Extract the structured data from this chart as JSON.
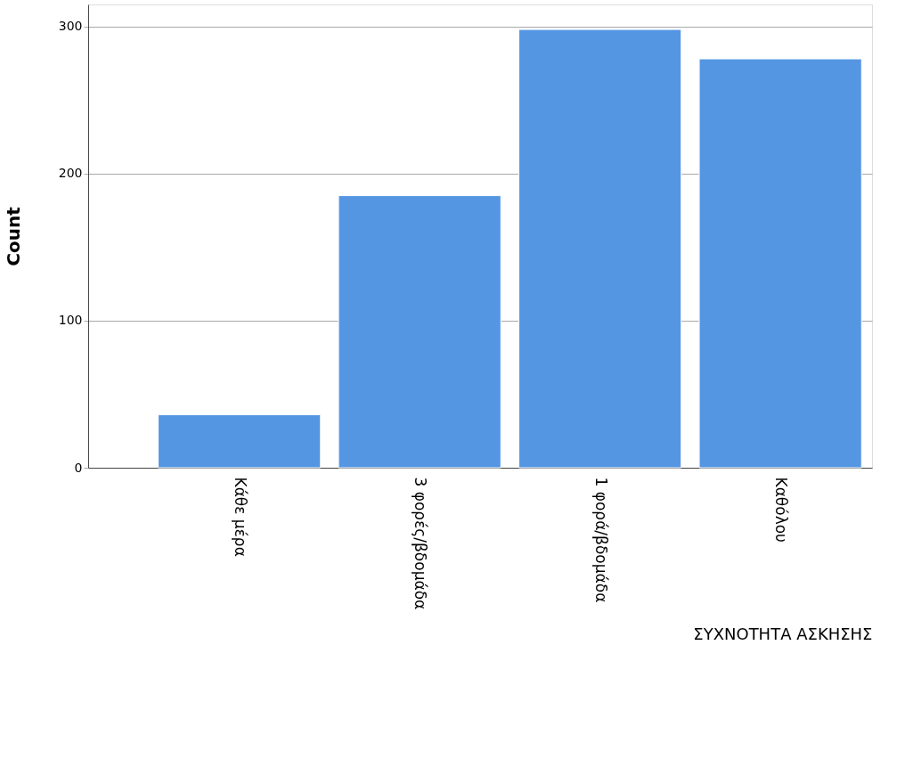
{
  "chart_data": {
    "type": "bar",
    "xlabel": "ΣΥΧΝΟΤΗΤΑ ΑΣΚΗΣΗΣ",
    "ylabel": "Count",
    "categories": [
      "Κάθε μέρα",
      "3 φορές/βδομάδα",
      "1 φορά/βδομάδα",
      "Καθόλου"
    ],
    "values": [
      36,
      185,
      298,
      278
    ],
    "color": "#5596e3",
    "ylim": [
      0,
      315
    ],
    "yticks": [
      0,
      100,
      200,
      300
    ],
    "grid": "y"
  }
}
